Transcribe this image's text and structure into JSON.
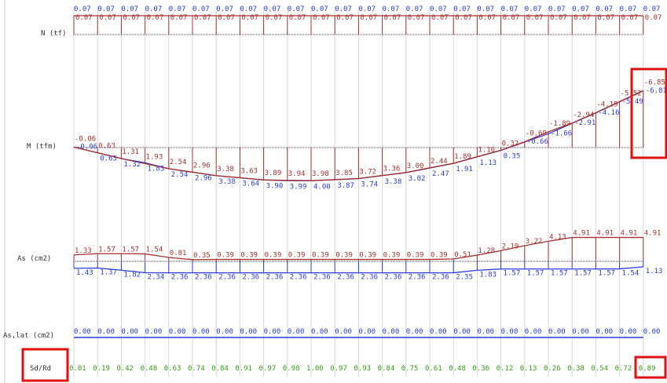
{
  "colors": {
    "red": "#a83232",
    "blue": "#2a3ee0",
    "green": "#3c9a1e",
    "baseline": "#444444",
    "grid": "#d7d7d7",
    "highlight": "#e01010"
  },
  "chart_data": [
    {
      "type": "line",
      "row_label": "N (tf)",
      "series": [
        {
          "values": [
            0.07,
            0.07,
            0.07,
            0.07,
            0.07,
            0.07,
            0.07,
            0.07,
            0.07,
            0.07,
            0.07,
            0.07,
            0.07,
            0.07,
            0.07,
            0.07,
            0.07,
            0.07,
            0.07,
            0.07,
            0.07,
            0.07,
            0.07,
            0.07,
            0.07
          ]
        },
        {
          "values": [
            0.07,
            0.07,
            0.07,
            0.07,
            0.07,
            0.07,
            0.07,
            0.07,
            0.07,
            0.07,
            0.07,
            0.07,
            0.07,
            0.07,
            0.07,
            0.07,
            0.07,
            0.07,
            0.07,
            0.07,
            0.07,
            0.07,
            0.07,
            0.07,
            0.07
          ]
        }
      ]
    },
    {
      "type": "line",
      "row_label": "M (tfm)",
      "series": [
        {
          "values": [
            "-0.06",
            "0.63",
            "1.31",
            "1.93",
            "2.54",
            "2.96",
            "3.38",
            "3.63",
            "3.89",
            "3.94",
            "3.98",
            "3.85",
            "3.72",
            "3.36",
            "3.00",
            "2.44",
            "1.89",
            "1.10",
            "0.32",
            "-0.69",
            "-1.89",
            "-2.94",
            "-4.19",
            "-5.52",
            "-6.85"
          ]
        },
        {
          "values": [
            "-0.06",
            "0.63",
            "1.32",
            "1.83",
            "2.54",
            "2.96",
            "3.38",
            "3.64",
            "3.90",
            "3.99",
            "4.00",
            "3.87",
            "3.74",
            "3.38",
            "3.02",
            "2.47",
            "1.91",
            "1.13",
            "0.35",
            "-0.66",
            "-1.66",
            "-2.91",
            "-4.16",
            "-5.49",
            "-6.81"
          ]
        }
      ]
    },
    {
      "type": "line",
      "row_label": "As (cm2)",
      "series": [
        {
          "values": [
            "1.33",
            "1.57",
            "1.57",
            "1.54",
            "0.81",
            "0.35",
            "0.39",
            "0.39",
            "0.39",
            "0.39",
            "0.39",
            "0.39",
            "0.39",
            "0.39",
            "0.39",
            "0.39",
            "0.51",
            "1.28",
            "2.19",
            "3.22",
            "4.13",
            "4.91",
            "4.91",
            "4.91",
            "4.91"
          ]
        },
        {
          "values": [
            "1.43",
            "1.37",
            "1.82",
            "2.34",
            "2.36",
            "2.36",
            "2.36",
            "2.36",
            "2.36",
            "2.36",
            "2.36",
            "2.36",
            "2.36",
            "2.36",
            "2.36",
            "2.36",
            "2.35",
            "1.83",
            "1.57",
            "1.57",
            "1.57",
            "1.57",
            "1.57",
            "1.54",
            "1.13"
          ]
        }
      ]
    },
    {
      "type": "line",
      "row_label": "As,lat (cm2)",
      "series": [
        {
          "values": [
            "0.00",
            "0.00",
            "0.00",
            "0.00",
            "0.00",
            "0.00",
            "0.00",
            "0.00",
            "0.00",
            "0.00",
            "0.00",
            "0.00",
            "0.00",
            "0.00",
            "0.00",
            "0.00",
            "0.00",
            "0.00",
            "0.00",
            "0.00",
            "0.00",
            "0.00",
            "0.00",
            "0.00",
            "0.00"
          ]
        }
      ]
    },
    {
      "type": "table",
      "row_label": "Sd/Rd",
      "series": [
        {
          "values": [
            "0.01",
            "0.19",
            "0.42",
            "0.48",
            "0.63",
            "0.74",
            "0.84",
            "0.91",
            "0.97",
            "0.98",
            "1.00",
            "0.97",
            "0.93",
            "0.84",
            "0.75",
            "0.61",
            "0.48",
            "0.36",
            "0.12",
            "0.13",
            "0.26",
            "0.38",
            "0.54",
            "0.72",
            "0.89"
          ]
        }
      ]
    }
  ]
}
